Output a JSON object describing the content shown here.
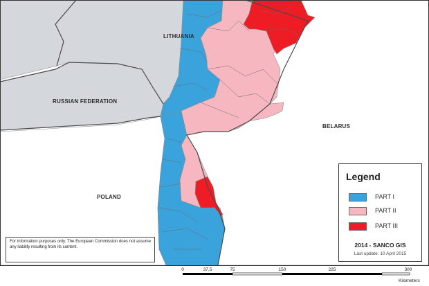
{
  "map": {
    "countries": {
      "lithuania": "LITHUANIA",
      "russian_federation": "RUSSIAN FEDERATION",
      "belarus": "BELARUS",
      "poland": "POLAND"
    },
    "colors": {
      "sea": "#d4d7db",
      "land": "#ffffff",
      "part1": "#3aa3dc",
      "part2": "#f6b7c1",
      "part3": "#ee1c24",
      "border": "#4a4a4a"
    }
  },
  "legend": {
    "title": "Legend",
    "items": [
      {
        "label": "PART I",
        "color": "#3aa3dc"
      },
      {
        "label": "PART II",
        "color": "#f6b7c1"
      },
      {
        "label": "PART III",
        "color": "#ee1c24"
      }
    ],
    "credit": "2014 - SANCO GIS",
    "last_update": "Last update: 10 April 2015"
  },
  "disclaimer": "For information purposes only. The European Commission does not assume any liability resulting from its content.",
  "scale": {
    "ticks": [
      "0",
      "37,5",
      "75",
      "150",
      "225",
      "300"
    ],
    "unit": "Kilometers"
  }
}
